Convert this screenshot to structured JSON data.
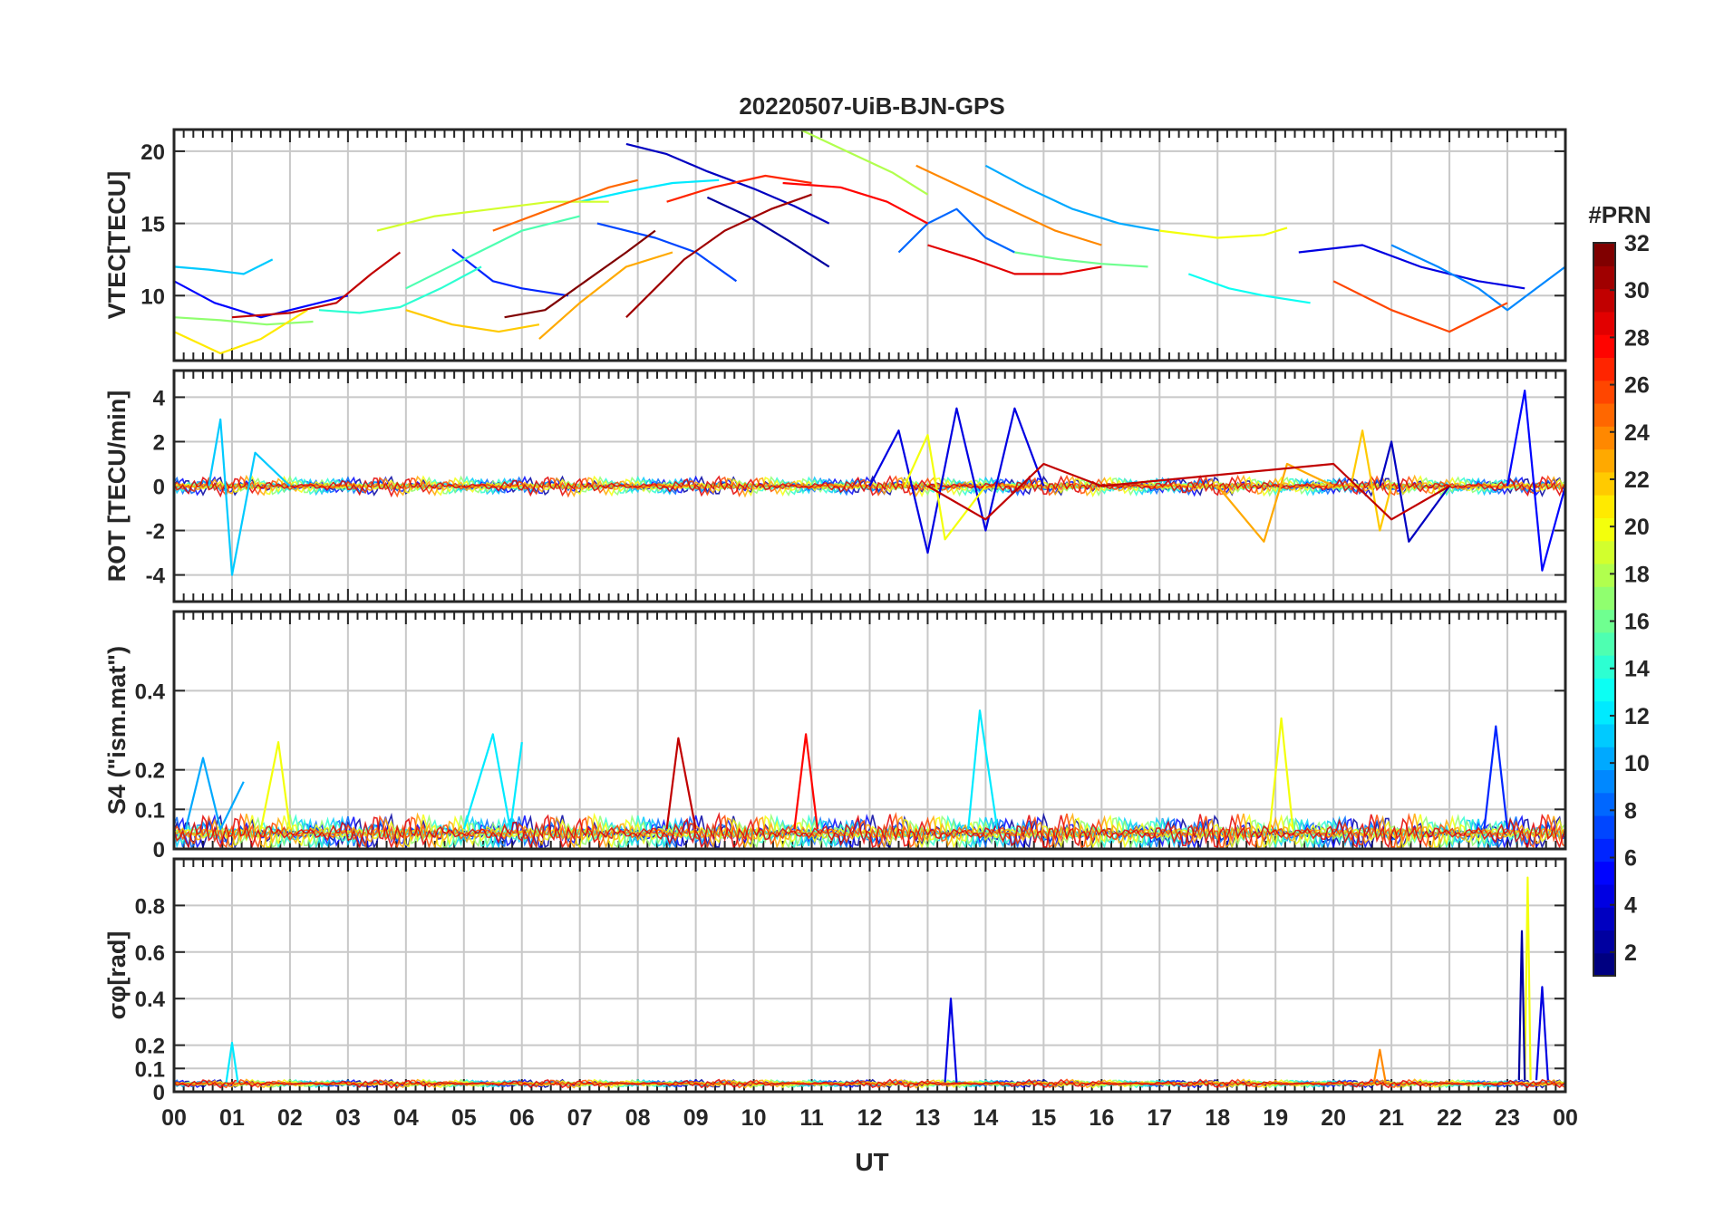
{
  "chart_data": {
    "type": "line",
    "title": "20220507-UiB-BJN-GPS",
    "xlabel": "UT",
    "x_tick_labels": [
      "00",
      "01",
      "02",
      "03",
      "04",
      "05",
      "06",
      "07",
      "08",
      "09",
      "10",
      "11",
      "12",
      "13",
      "14",
      "15",
      "16",
      "17",
      "18",
      "19",
      "20",
      "21",
      "22",
      "23",
      "00"
    ],
    "xlim": [
      0,
      24
    ],
    "colorbar": {
      "title": "#PRN",
      "range": [
        1,
        32
      ],
      "tick_labels": [
        "2",
        "4",
        "6",
        "8",
        "10",
        "12",
        "14",
        "16",
        "18",
        "20",
        "22",
        "24",
        "26",
        "28",
        "30",
        "32"
      ],
      "colormap": "jet"
    },
    "panels": [
      {
        "id": "vtec",
        "ylabel": "VTEC[TECU]",
        "ylim": [
          5.5,
          21.5
        ],
        "yticks": [
          10,
          15,
          20
        ],
        "ytick_labels": [
          "10",
          "15",
          "20"
        ],
        "series": [
          {
            "name": "PRN 2",
            "prn": 2,
            "x": [
              9.2,
              9.9,
              10.6,
              11.3
            ],
            "y": [
              16.8,
              15.5,
              13.8,
              12.0
            ]
          },
          {
            "name": "PRN 3",
            "prn": 3,
            "x": [
              7.8,
              8.5,
              9.2,
              10.0,
              10.7,
              11.3
            ],
            "y": [
              20.5,
              19.8,
              18.6,
              17.4,
              16.2,
              15.0
            ]
          },
          {
            "name": "PRN 4",
            "prn": 4,
            "x": [
              19.4,
              20.5,
              21.5,
              22.5,
              23.3
            ],
            "y": [
              13.0,
              13.5,
              12.0,
              11.0,
              10.5
            ]
          },
          {
            "name": "PRN 5",
            "prn": 5,
            "x": [
              0.0,
              0.7,
              1.5,
              2.5,
              3.0
            ],
            "y": [
              11.0,
              9.5,
              8.5,
              9.5,
              10.0
            ]
          },
          {
            "name": "PRN 6",
            "prn": 6,
            "x": [
              4.8,
              5.5,
              6.0,
              6.8
            ],
            "y": [
              13.2,
              11.0,
              10.5,
              10.0
            ]
          },
          {
            "name": "PRN 7",
            "prn": 7,
            "x": [
              7.3,
              8.3,
              9.0,
              9.7
            ],
            "y": [
              15.0,
              14.0,
              13.0,
              11.0
            ]
          },
          {
            "name": "PRN 8",
            "prn": 8,
            "x": [
              12.5,
              13.0,
              13.5,
              14.0,
              14.5
            ],
            "y": [
              13.0,
              15.0,
              16.0,
              14.0,
              13.0
            ]
          },
          {
            "name": "PRN 9",
            "prn": 9,
            "x": [
              21.0,
              21.8,
              22.5,
              23.0,
              23.5,
              24.0
            ],
            "y": [
              13.5,
              12.0,
              10.5,
              9.0,
              10.5,
              12.0
            ]
          },
          {
            "name": "PRN 10",
            "prn": 10,
            "x": [
              14.0,
              14.7,
              15.5,
              16.3,
              17.0
            ],
            "y": [
              19.0,
              17.5,
              16.0,
              15.0,
              14.5
            ]
          },
          {
            "name": "PRN 11",
            "prn": 11,
            "x": [
              0.0,
              0.6,
              1.2,
              1.7
            ],
            "y": [
              12.0,
              11.8,
              11.5,
              12.5
            ]
          },
          {
            "name": "PRN 12",
            "prn": 12,
            "x": [
              7.0,
              7.8,
              8.6,
              9.4
            ],
            "y": [
              16.5,
              17.2,
              17.8,
              18.0
            ]
          },
          {
            "name": "PRN 13",
            "prn": 13,
            "x": [
              17.5,
              18.2,
              18.8,
              19.6
            ],
            "y": [
              11.5,
              10.5,
              10.0,
              9.5
            ]
          },
          {
            "name": "PRN 14",
            "prn": 14,
            "x": [
              2.5,
              3.2,
              3.9,
              4.6,
              5.3
            ],
            "y": [
              9.0,
              8.8,
              9.2,
              10.5,
              12.0
            ]
          },
          {
            "name": "PRN 15",
            "prn": 15,
            "x": [
              4.0,
              5.0,
              6.0,
              7.0
            ],
            "y": [
              10.5,
              12.5,
              14.5,
              15.5
            ]
          },
          {
            "name": "PRN 16",
            "prn": 16,
            "x": [
              14.5,
              15.3,
              16.0,
              16.8
            ],
            "y": [
              13.0,
              12.5,
              12.2,
              12.0
            ]
          },
          {
            "name": "PRN 17",
            "prn": 17,
            "x": [
              0.0,
              0.8,
              1.6,
              2.4
            ],
            "y": [
              8.5,
              8.3,
              8.0,
              8.2
            ]
          },
          {
            "name": "PRN 18",
            "prn": 18,
            "x": [
              10.8,
              11.6,
              12.4,
              13.0
            ],
            "y": [
              21.5,
              20.0,
              18.5,
              17.0
            ]
          },
          {
            "name": "PRN 19",
            "prn": 19,
            "x": [
              3.5,
              4.5,
              5.5,
              6.5,
              7.5
            ],
            "y": [
              14.5,
              15.5,
              16.0,
              16.5,
              16.5
            ]
          },
          {
            "name": "PRN 20",
            "prn": 20,
            "x": [
              17.0,
              18.0,
              18.8,
              19.2
            ],
            "y": [
              14.5,
              14.0,
              14.2,
              14.7
            ]
          },
          {
            "name": "PRN 21",
            "prn": 21,
            "x": [
              0.0,
              0.8,
              1.5,
              2.3
            ],
            "y": [
              7.5,
              6.0,
              7.0,
              9.0
            ]
          },
          {
            "name": "PRN 22",
            "prn": 22,
            "x": [
              4.0,
              4.8,
              5.6,
              6.3
            ],
            "y": [
              9.0,
              8.0,
              7.5,
              8.0
            ]
          },
          {
            "name": "PRN 23",
            "prn": 23,
            "x": [
              6.3,
              7.0,
              7.8,
              8.6
            ],
            "y": [
              7.0,
              9.5,
              12.0,
              13.0
            ]
          },
          {
            "name": "PRN 24",
            "prn": 24,
            "x": [
              12.8,
              13.6,
              14.4,
              15.2,
              16.0
            ],
            "y": [
              19.0,
              17.5,
              16.0,
              14.5,
              13.5
            ]
          },
          {
            "name": "PRN 25",
            "prn": 25,
            "x": [
              5.5,
              6.5,
              7.5,
              8.0
            ],
            "y": [
              14.5,
              16.0,
              17.5,
              18.0
            ]
          },
          {
            "name": "PRN 26",
            "prn": 26,
            "x": [
              20.0,
              21.0,
              22.0,
              23.0
            ],
            "y": [
              11.0,
              9.0,
              7.5,
              9.5
            ]
          },
          {
            "name": "PRN 27",
            "prn": 27,
            "x": [
              8.5,
              9.3,
              10.2,
              11.0
            ],
            "y": [
              16.5,
              17.5,
              18.3,
              17.8
            ]
          },
          {
            "name": "PRN 28",
            "prn": 28,
            "x": [
              10.5,
              11.5,
              12.3,
              13.0
            ],
            "y": [
              17.8,
              17.5,
              16.5,
              15.0
            ]
          },
          {
            "name": "PRN 29",
            "prn": 29,
            "x": [
              13.0,
              13.8,
              14.5,
              15.3,
              16.0
            ],
            "y": [
              13.5,
              12.5,
              11.5,
              11.5,
              12.0
            ]
          },
          {
            "name": "PRN 30",
            "prn": 30,
            "x": [
              1.0,
              2.0,
              2.8,
              3.4,
              3.9
            ],
            "y": [
              8.5,
              8.8,
              9.5,
              11.5,
              13.0
            ]
          },
          {
            "name": "PRN 31",
            "prn": 31,
            "x": [
              7.8,
              8.3,
              8.8,
              9.5,
              10.3,
              11.0
            ],
            "y": [
              8.5,
              10.5,
              12.5,
              14.5,
              16.0,
              17.0
            ]
          },
          {
            "name": "PRN 32",
            "prn": 32,
            "x": [
              5.7,
              6.4,
              7.1,
              7.8,
              8.3
            ],
            "y": [
              8.5,
              9.0,
              11.0,
              13.0,
              14.5
            ]
          }
        ]
      },
      {
        "id": "rot",
        "ylabel": "ROT [TECU/min]",
        "ylim": [
          -5.2,
          5.2
        ],
        "yticks": [
          -4,
          -2,
          0,
          2,
          4
        ],
        "ytick_labels": [
          "-4",
          "-2",
          "0",
          "2",
          "4"
        ],
        "series": [
          {
            "name": "PRN 4",
            "prn": 4,
            "x": [
              12.0,
              12.5,
              13.0,
              13.5,
              14.0,
              14.5,
              15.0
            ],
            "y": [
              0,
              2.5,
              -3.0,
              3.5,
              -2.0,
              3.5,
              0
            ]
          },
          {
            "name": "PRN 11",
            "prn": 11,
            "x": [
              0.6,
              0.8,
              1.0,
              1.4,
              2.0
            ],
            "y": [
              0,
              3.0,
              -4.0,
              1.5,
              0
            ]
          },
          {
            "name": "PRN 20",
            "prn": 20,
            "x": [
              12.6,
              13.0,
              13.3,
              14.0
            ],
            "y": [
              0,
              2.3,
              -2.4,
              0
            ]
          },
          {
            "name": "PRN 23",
            "prn": 23,
            "x": [
              18.0,
              18.8,
              19.2,
              20.0
            ],
            "y": [
              0,
              -2.5,
              1.0,
              0
            ]
          },
          {
            "name": "PRN 22",
            "prn": 22,
            "x": [
              20.3,
              20.5,
              20.8,
              21.0
            ],
            "y": [
              0,
              2.5,
              -2.0,
              0
            ]
          },
          {
            "name": "PRN 3",
            "prn": 3,
            "x": [
              20.8,
              21.0,
              21.3,
              22.0
            ],
            "y": [
              0,
              2.0,
              -2.5,
              0
            ]
          },
          {
            "name": "PRN 5",
            "prn": 5,
            "x": [
              23.0,
              23.3,
              23.6,
              24.0
            ],
            "y": [
              0,
              4.3,
              -3.8,
              0
            ]
          },
          {
            "name": "PRN 30",
            "prn": 30,
            "x": [
              13.0,
              14.0,
              15.0,
              16.0,
              20.0,
              21.0,
              22.0
            ],
            "y": [
              0,
              -1.5,
              1.0,
              0,
              1.0,
              -1.5,
              0
            ]
          }
        ]
      },
      {
        "id": "s4",
        "ylabel": "S4 (\"ism.mat\")",
        "ylim": [
          0,
          0.6
        ],
        "yticks": [
          0,
          0.1,
          0.2,
          0.4
        ],
        "ytick_labels": [
          "0",
          "0.1",
          "0.2",
          "0.4"
        ],
        "series": [
          {
            "name": "PRN 10",
            "prn": 10,
            "x": [
              0.2,
              0.5,
              0.8,
              1.2
            ],
            "y": [
              0.05,
              0.23,
              0.05,
              0.17
            ]
          },
          {
            "name": "PRN 20",
            "prn": 20,
            "x": [
              1.5,
              1.8,
              2.0
            ],
            "y": [
              0.05,
              0.27,
              0.05
            ]
          },
          {
            "name": "PRN 12",
            "prn": 12,
            "x": [
              5.0,
              5.5,
              5.8,
              6.0
            ],
            "y": [
              0.05,
              0.29,
              0.05,
              0.27
            ]
          },
          {
            "name": "PRN 30",
            "prn": 30,
            "x": [
              8.5,
              8.7,
              9.0
            ],
            "y": [
              0.05,
              0.28,
              0.05
            ]
          },
          {
            "name": "PRN 28",
            "prn": 28,
            "x": [
              10.7,
              10.9,
              11.1
            ],
            "y": [
              0.05,
              0.29,
              0.05
            ]
          },
          {
            "name": "PRN 12",
            "prn": 12,
            "x": [
              13.7,
              13.9,
              14.2
            ],
            "y": [
              0.05,
              0.35,
              0.05
            ]
          },
          {
            "name": "PRN 20",
            "prn": 20,
            "x": [
              18.9,
              19.1,
              19.3
            ],
            "y": [
              0.05,
              0.33,
              0.05
            ]
          },
          {
            "name": "PRN 6",
            "prn": 6,
            "x": [
              22.6,
              22.8,
              23.0
            ],
            "y": [
              0.05,
              0.31,
              0.05
            ]
          }
        ]
      },
      {
        "id": "sigma_phi",
        "ylabel": "σφ[rad]",
        "ylim": [
          0,
          1.0
        ],
        "yticks": [
          0,
          0.1,
          0.2,
          0.4,
          0.6,
          0.8
        ],
        "ytick_labels": [
          "0",
          "0.1",
          "0.2",
          "0.4",
          "0.6",
          "0.8"
        ],
        "series": [
          {
            "name": "PRN 12",
            "prn": 12,
            "x": [
              0.9,
              1.0,
              1.1
            ],
            "y": [
              0.04,
              0.21,
              0.04
            ]
          },
          {
            "name": "PRN 4",
            "prn": 4,
            "x": [
              13.3,
              13.4,
              13.5
            ],
            "y": [
              0.04,
              0.4,
              0.04
            ]
          },
          {
            "name": "PRN 24",
            "prn": 24,
            "x": [
              20.7,
              20.8,
              20.9
            ],
            "y": [
              0.04,
              0.18,
              0.04
            ]
          },
          {
            "name": "PRN 20",
            "prn": 20,
            "x": [
              23.3,
              23.35,
              23.4
            ],
            "y": [
              0.05,
              0.92,
              0.05
            ]
          },
          {
            "name": "PRN 2",
            "prn": 2,
            "x": [
              23.2,
              23.25,
              23.3
            ],
            "y": [
              0.05,
              0.69,
              0.05
            ]
          },
          {
            "name": "PRN 4",
            "prn": 4,
            "x": [
              23.5,
              23.6,
              23.7
            ],
            "y": [
              0.05,
              0.45,
              0.05
            ]
          }
        ]
      }
    ]
  }
}
